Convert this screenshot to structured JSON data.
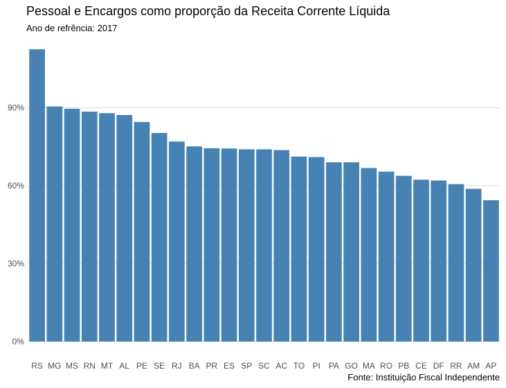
{
  "chart_data": {
    "type": "bar",
    "title": "Pessoal e Encargos como proporção da Receita Corrente Líquida",
    "subtitle": "Ano de refrência: 2017",
    "caption": "Fonte: Instituição Fiscal Independente",
    "xlabel": "",
    "ylabel": "",
    "categories": [
      "RS",
      "MG",
      "MS",
      "RN",
      "MT",
      "AL",
      "PE",
      "SE",
      "RJ",
      "BA",
      "PR",
      "ES",
      "SP",
      "SC",
      "AC",
      "TO",
      "PI",
      "PA",
      "GO",
      "MA",
      "RO",
      "PB",
      "CE",
      "DF",
      "RR",
      "AM",
      "AP"
    ],
    "values": [
      112.5,
      90.5,
      89.6,
      88.5,
      87.9,
      87.2,
      84.5,
      80.3,
      77.0,
      75.1,
      74.4,
      74.3,
      74.0,
      74.0,
      73.7,
      71.2,
      71.0,
      69.0,
      69.0,
      66.8,
      65.4,
      63.8,
      62.3,
      62.0,
      60.6,
      58.8,
      54.4
    ],
    "ylim": [
      0,
      115
    ],
    "yticks": [
      0,
      30,
      60,
      90
    ],
    "ytick_labels": [
      "0%",
      "30%",
      "60%",
      "90%"
    ],
    "grid": true,
    "bar_color": "#4682b4",
    "grid_color": "#d9d9d9",
    "tick_label_color": "#4d4d4d"
  }
}
